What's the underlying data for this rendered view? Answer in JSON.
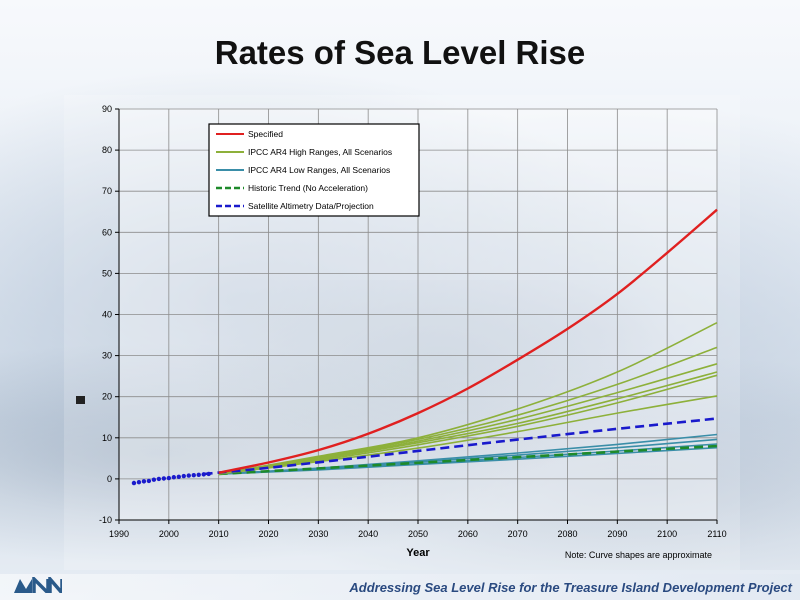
{
  "slide": {
    "title": "Rates of Sea Level Rise",
    "footer": "Addressing Sea Level Rise for the Treasure Island Development Project",
    "colors": {
      "footer_text": "#2a4a80",
      "logo": "#2a5a8a"
    }
  },
  "chart_data": {
    "type": "line",
    "title": "",
    "xlabel": "Year",
    "ylabel": "",
    "xlim": [
      1990,
      2110
    ],
    "ylim": [
      -10,
      90
    ],
    "xticks": [
      1990,
      2000,
      2010,
      2020,
      2030,
      2040,
      2050,
      2060,
      2070,
      2080,
      2090,
      2100,
      2110
    ],
    "yticks": [
      -10,
      0,
      10,
      20,
      30,
      40,
      50,
      60,
      70,
      80,
      90
    ],
    "grid": true,
    "legend_position": "top-left",
    "note": "Note: Curve shapes are approximate",
    "series": [
      {
        "name": "Specified",
        "color": "#e02020",
        "style": "solid",
        "points": [
          [
            2010,
            1.5
          ],
          [
            2020,
            4.0
          ],
          [
            2030,
            7.0
          ],
          [
            2040,
            11.0
          ],
          [
            2050,
            16.0
          ],
          [
            2060,
            22.0
          ],
          [
            2070,
            29.0
          ],
          [
            2080,
            36.5
          ],
          [
            2090,
            45.0
          ],
          [
            2100,
            55.0
          ],
          [
            2110,
            65.5
          ]
        ]
      },
      {
        "name": "IPCC AR4 High Ranges, All Scenarios",
        "color": "#8db03a",
        "style": "solid",
        "curves": [
          [
            [
              2010,
              1.2
            ],
            [
              2030,
              5.5
            ],
            [
              2050,
              10.0
            ],
            [
              2070,
              17.0
            ],
            [
              2090,
              26.0
            ],
            [
              2110,
              38.0
            ]
          ],
          [
            [
              2010,
              1.2
            ],
            [
              2030,
              5.2
            ],
            [
              2050,
              9.6
            ],
            [
              2070,
              15.5
            ],
            [
              2090,
              23.0
            ],
            [
              2110,
              32.0
            ]
          ],
          [
            [
              2010,
              1.2
            ],
            [
              2030,
              5.0
            ],
            [
              2050,
              9.2
            ],
            [
              2070,
              14.5
            ],
            [
              2090,
              21.0
            ],
            [
              2110,
              28.0
            ]
          ],
          [
            [
              2010,
              1.2
            ],
            [
              2030,
              4.8
            ],
            [
              2050,
              8.8
            ],
            [
              2070,
              13.5
            ],
            [
              2090,
              19.5
            ],
            [
              2110,
              26.0
            ]
          ],
          [
            [
              2010,
              1.2
            ],
            [
              2030,
              4.5
            ],
            [
              2050,
              8.3
            ],
            [
              2070,
              12.8
            ],
            [
              2090,
              18.5
            ],
            [
              2110,
              25.2
            ]
          ],
          [
            [
              2010,
              1.2
            ],
            [
              2030,
              4.2
            ],
            [
              2050,
              7.5
            ],
            [
              2070,
              11.5
            ],
            [
              2090,
              16.0
            ],
            [
              2110,
              20.2
            ]
          ]
        ]
      },
      {
        "name": "IPCC AR4 Low Ranges, All Scenarios",
        "color": "#3a8ea8",
        "style": "solid",
        "curves": [
          [
            [
              2010,
              1.2
            ],
            [
              2030,
              2.6
            ],
            [
              2050,
              4.4
            ],
            [
              2070,
              6.3
            ],
            [
              2090,
              8.4
            ],
            [
              2110,
              10.8
            ]
          ],
          [
            [
              2010,
              1.2
            ],
            [
              2030,
              2.5
            ],
            [
              2050,
              4.1
            ],
            [
              2070,
              5.8
            ],
            [
              2090,
              7.6
            ],
            [
              2110,
              9.6
            ]
          ],
          [
            [
              2010,
              1.2
            ],
            [
              2030,
              2.3
            ],
            [
              2050,
              3.7
            ],
            [
              2070,
              5.2
            ],
            [
              2090,
              6.8
            ],
            [
              2110,
              8.5
            ]
          ],
          [
            [
              2010,
              1.2
            ],
            [
              2030,
              2.2
            ],
            [
              2050,
              3.5
            ],
            [
              2070,
              4.8
            ],
            [
              2090,
              6.2
            ],
            [
              2110,
              7.6
            ]
          ]
        ]
      },
      {
        "name": "Historic Trend (No Acceleration)",
        "color": "#1e8a2a",
        "style": "dashed",
        "points": [
          [
            2010,
            1.2
          ],
          [
            2110,
            8.0
          ]
        ]
      },
      {
        "name": "Satellite Altimetry Data/Projection",
        "color": "#1a1acc",
        "style": "dashed",
        "points": [
          [
            2007,
            1.2
          ],
          [
            2020,
            2.7
          ],
          [
            2040,
            5.4
          ],
          [
            2060,
            8.2
          ],
          [
            2080,
            10.9
          ],
          [
            2110,
            14.7
          ]
        ],
        "data_points": [
          [
            1993,
            -1.0
          ],
          [
            1994,
            -0.8
          ],
          [
            1995,
            -0.6
          ],
          [
            1996,
            -0.5
          ],
          [
            1997,
            -0.2
          ],
          [
            1998,
            0.0
          ],
          [
            1999,
            0.1
          ],
          [
            2000,
            0.2
          ],
          [
            2001,
            0.4
          ],
          [
            2002,
            0.5
          ],
          [
            2003,
            0.7
          ],
          [
            2004,
            0.8
          ],
          [
            2005,
            0.9
          ],
          [
            2006,
            1.0
          ],
          [
            2007,
            1.1
          ],
          [
            2008,
            1.2
          ]
        ]
      }
    ]
  }
}
